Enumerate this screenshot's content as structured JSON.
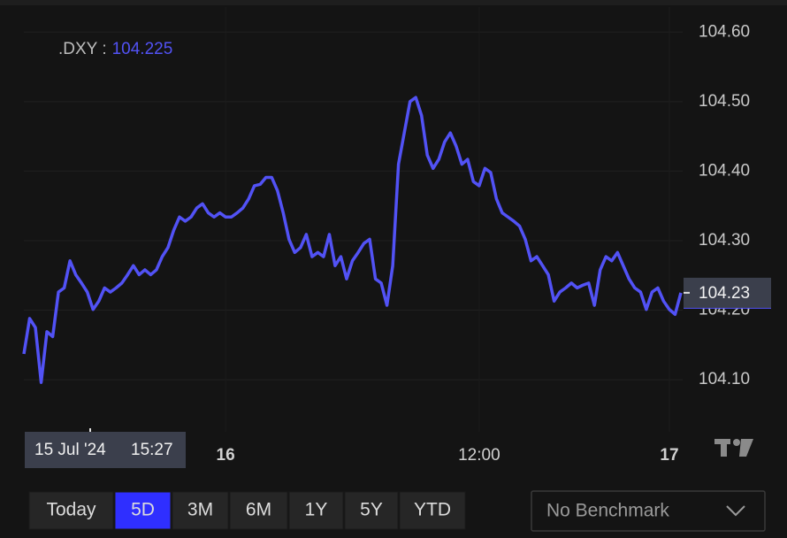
{
  "chart_data": {
    "type": "line",
    "legend_separator": ":",
    "last_value": 104.225,
    "last_label": "104.23",
    "crosshair": {
      "date": "15 Jul '24",
      "time": "15:27"
    },
    "categories": [
      null,
      null,
      null,
      null,
      null,
      null,
      null,
      null,
      null,
      null,
      null,
      null,
      null,
      null,
      null,
      null,
      null,
      null,
      null,
      null,
      null,
      null,
      null,
      null,
      null,
      null,
      null,
      null,
      null,
      null,
      null,
      null,
      null,
      null,
      null,
      "16",
      null,
      null,
      null,
      null,
      null,
      null,
      null,
      null,
      null,
      null,
      null,
      null,
      null,
      null,
      null,
      null,
      null,
      null,
      null,
      null,
      null,
      null,
      null,
      null,
      null,
      null,
      null,
      null,
      null,
      null,
      null,
      null,
      null,
      null,
      null,
      null,
      null,
      null,
      null,
      null,
      null,
      null,
      null,
      "12:00",
      null,
      null,
      null,
      null,
      null,
      null,
      null,
      null,
      null,
      null,
      null,
      null,
      null,
      null,
      null,
      null,
      null,
      null,
      null,
      null,
      null,
      null,
      null,
      null,
      null,
      null,
      null,
      null,
      null,
      null,
      null,
      null,
      "17",
      null,
      null
    ],
    "series": [
      {
        "name": ".DXY",
        "color": "#5252f5",
        "values": [
          104.137,
          104.188,
          104.175,
          104.096,
          104.169,
          104.162,
          104.226,
          104.232,
          104.271,
          104.251,
          104.239,
          104.226,
          104.201,
          104.213,
          104.232,
          104.226,
          104.232,
          104.239,
          104.251,
          104.264,
          104.251,
          104.258,
          104.251,
          104.258,
          104.277,
          104.29,
          104.315,
          104.334,
          104.328,
          104.334,
          104.347,
          104.353,
          104.34,
          104.334,
          104.34,
          104.334,
          104.334,
          104.34,
          104.347,
          104.36,
          104.379,
          104.381,
          104.391,
          104.391,
          104.372,
          104.34,
          104.302,
          104.283,
          104.29,
          104.309,
          104.277,
          104.283,
          104.277,
          104.309,
          104.264,
          104.277,
          104.245,
          104.271,
          104.283,
          104.296,
          104.302,
          104.245,
          104.239,
          104.207,
          104.264,
          104.41,
          104.455,
          104.5,
          104.506,
          104.48,
          104.423,
          104.404,
          104.417,
          104.442,
          104.455,
          104.436,
          104.41,
          104.417,
          104.385,
          104.379,
          104.404,
          104.398,
          104.36,
          104.34,
          104.334,
          104.328,
          104.321,
          104.302,
          104.271,
          104.277,
          104.264,
          104.251,
          104.213,
          104.226,
          104.232,
          104.239,
          104.232,
          104.236,
          104.239,
          104.207,
          104.258,
          104.277,
          104.271,
          104.283,
          104.264,
          104.245,
          104.232,
          104.226,
          104.201,
          104.226,
          104.232,
          104.213,
          104.201,
          104.194,
          104.225
        ]
      }
    ],
    "ylim": [
      104.025,
      104.636
    ],
    "yticks": [
      {
        "value": 104.1,
        "label": "104.10"
      },
      {
        "value": 104.2,
        "label": "104.20"
      },
      {
        "value": 104.3,
        "label": "104.30"
      },
      {
        "value": 104.4,
        "label": "104.40"
      },
      {
        "value": 104.5,
        "label": "104.50"
      },
      {
        "value": 104.6,
        "label": "104.60"
      }
    ],
    "grid": true
  },
  "controls": {
    "ranges": [
      "Today",
      "5D",
      "3M",
      "6M",
      "1Y",
      "5Y",
      "YTD"
    ],
    "selected_range": "5D",
    "benchmark": "No Benchmark"
  }
}
